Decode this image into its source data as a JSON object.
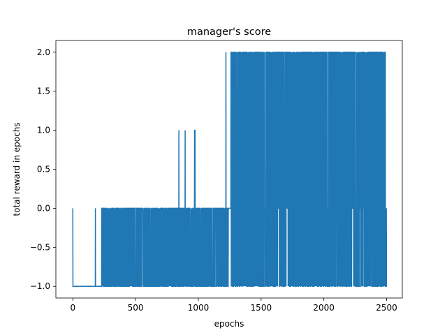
{
  "chart_data": {
    "type": "line",
    "title": "manager's score",
    "xlabel": "epochs",
    "ylabel": "total reward in epochs",
    "xlim": [
      -135,
      2625
    ],
    "ylim": [
      -1.15,
      2.15
    ],
    "xticks": [
      0,
      500,
      1000,
      1500,
      2000,
      2500
    ],
    "xtick_labels": [
      "0",
      "500",
      "1000",
      "1500",
      "2000",
      "2500"
    ],
    "yticks": [
      -1.0,
      -0.5,
      0.0,
      0.5,
      1.0,
      1.5,
      2.0
    ],
    "ytick_labels": [
      "−1.0",
      "−0.5",
      "0.0",
      "0.5",
      "1.0",
      "1.5",
      "2.0"
    ],
    "grid": false,
    "legend": "none",
    "series": [
      {
        "color": "#1f77b4",
        "description": "episodic reward per epoch; values take -1, 0, 1 or 2",
        "segments": [
          {
            "x_start": 0,
            "x_end": 1,
            "value": 0.0
          },
          {
            "x_start": 1,
            "x_end": 180,
            "value": -1.0
          },
          {
            "x_start": 180,
            "x_end": 181,
            "value": 0.0
          },
          {
            "x_start": 181,
            "x_end": 230,
            "value": -1.0
          },
          {
            "x_start": 230,
            "x_end": 1240,
            "alternating": [
              -1.0,
              0.0
            ]
          },
          {
            "x_start": 845,
            "x_end": 846,
            "value": 1.0
          },
          {
            "x_start": 895,
            "x_end": 896,
            "value": 1.0
          },
          {
            "x_start": 970,
            "x_end": 975,
            "value": 1.0
          },
          {
            "x_start": 1220,
            "x_end": 1221,
            "value": 2.0
          },
          {
            "x_start": 1240,
            "x_end": 1260,
            "value": 0.0
          },
          {
            "x_start": 1260,
            "x_end": 2500,
            "alternating": [
              -1.0,
              0.0,
              2.0
            ]
          }
        ]
      }
    ]
  }
}
